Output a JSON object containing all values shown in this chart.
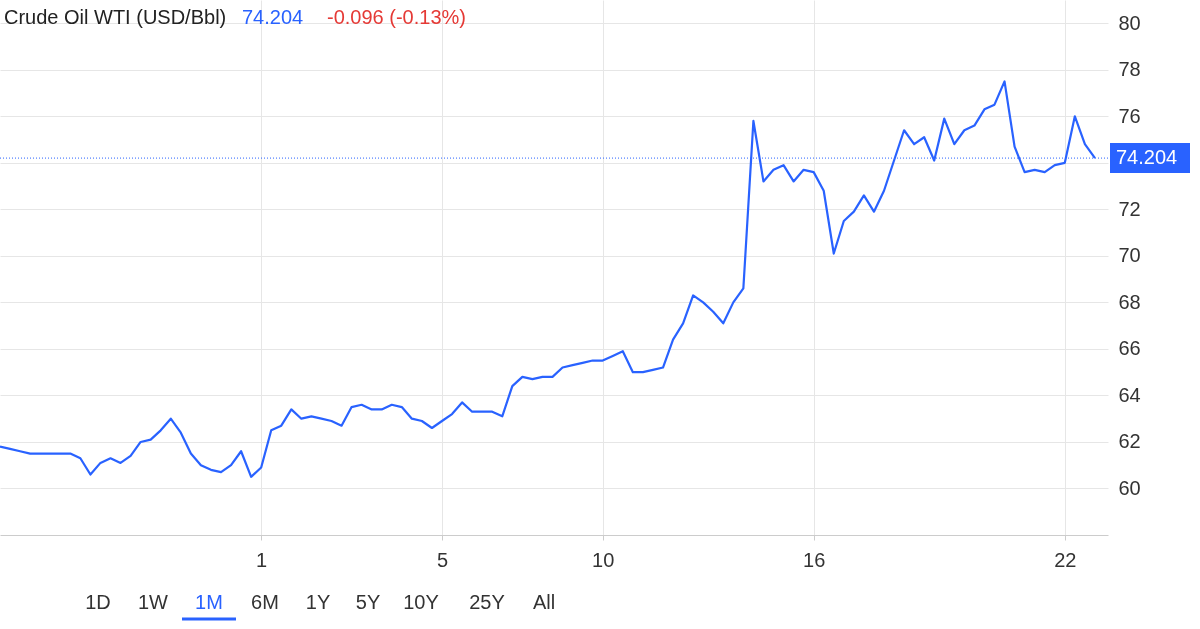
{
  "chart_data": {
    "type": "line",
    "title": "Crude Oil WTI (USD/Bbl)",
    "annotations": [
      "74.204",
      "-0.096 (-0.13%)",
      "1D",
      "1W",
      "1M",
      "6M",
      "1Y",
      "5Y",
      "10Y",
      "25Y",
      "All"
    ],
    "categories": [
      null,
      null,
      null,
      null,
      null,
      null,
      null,
      null,
      null,
      null,
      null,
      null,
      null,
      null,
      null,
      null,
      null,
      null,
      null,
      null,
      null,
      null,
      null,
      null,
      null,
      null,
      "1",
      null,
      null,
      null,
      null,
      null,
      null,
      null,
      null,
      null,
      null,
      null,
      null,
      null,
      null,
      null,
      null,
      null,
      "5",
      null,
      null,
      null,
      null,
      null,
      null,
      null,
      null,
      null,
      null,
      null,
      null,
      null,
      null,
      null,
      "10",
      null,
      null,
      null,
      null,
      null,
      null,
      null,
      null,
      null,
      null,
      null,
      null,
      null,
      null,
      null,
      null,
      null,
      null,
      null,
      null,
      "16",
      null,
      null,
      null,
      null,
      null,
      null,
      null,
      null,
      null,
      null,
      null,
      null,
      null,
      null,
      null,
      null,
      null,
      null,
      null,
      null,
      null,
      null,
      null,
      null,
      "22",
      null,
      null,
      null
    ],
    "series": [
      {
        "color": "#2962ff",
        "values": [
          61.8,
          61.7,
          61.6,
          61.5,
          61.5,
          61.5,
          61.5,
          61.5,
          61.3,
          60.6,
          61.1,
          61.3,
          61.1,
          61.4,
          62.0,
          62.1,
          62.5,
          63.0,
          62.4,
          61.5,
          61.0,
          60.8,
          60.7,
          61.0,
          61.6,
          60.5,
          60.9,
          62.5,
          62.7,
          63.4,
          63.0,
          63.1,
          63.0,
          62.9,
          62.7,
          63.5,
          63.6,
          63.4,
          63.4,
          63.6,
          63.5,
          63.0,
          62.9,
          62.6,
          62.9,
          63.2,
          63.7,
          63.3,
          63.3,
          63.3,
          63.1,
          64.4,
          64.8,
          64.7,
          64.8,
          64.8,
          65.2,
          65.3,
          65.4,
          65.5,
          65.5,
          65.7,
          65.9,
          65.0,
          65.0,
          65.1,
          65.2,
          66.4,
          67.1,
          68.3,
          68.0,
          67.6,
          67.1,
          68.0,
          68.6,
          75.8,
          73.2,
          73.7,
          73.9,
          73.2,
          73.7,
          73.6,
          72.8,
          70.1,
          71.5,
          71.9,
          72.6,
          71.9,
          72.8,
          74.1,
          75.4,
          74.8,
          75.1,
          74.1,
          75.9,
          74.8,
          75.4,
          75.6,
          76.3,
          76.5,
          77.5,
          74.7,
          73.6,
          73.7,
          73.6,
          73.9,
          74.0,
          76.0,
          74.8,
          74.2
        ]
      }
    ],
    "ylim": [
      58,
      81
    ],
    "yticks": [
      60,
      62,
      64,
      66,
      68,
      70,
      72,
      {
        "value": 74,
        "label": null
      },
      76,
      78,
      80
    ],
    "ref_lines": [
      {
        "axis": "y",
        "value": 74.204,
        "label": "74.204",
        "color": "#2962ff",
        "line_style": "dotted"
      }
    ],
    "grid": true,
    "marker": "none",
    "line_style": "solid"
  }
}
